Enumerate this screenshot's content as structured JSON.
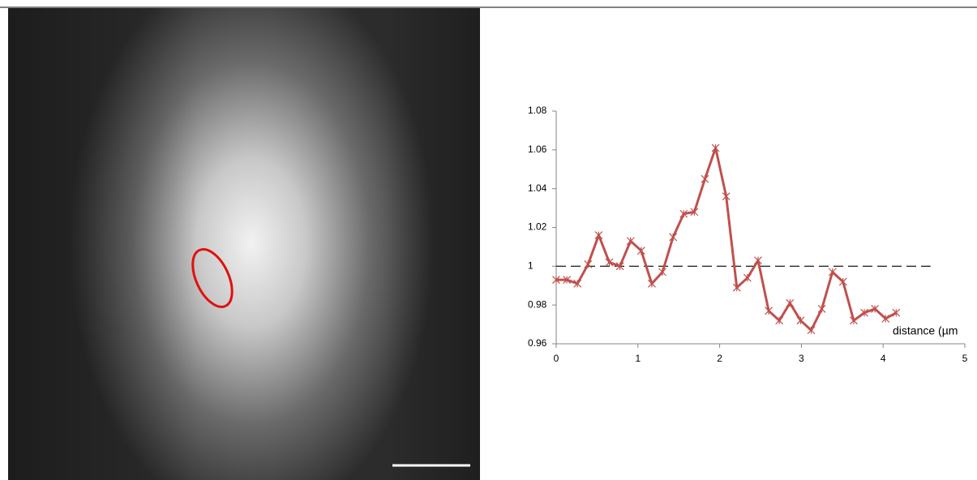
{
  "chart_data": {
    "type": "line",
    "x_label": "distance (µm",
    "x": [
      0,
      0.13,
      0.26,
      0.39,
      0.52,
      0.65,
      0.78,
      0.91,
      1.04,
      1.17,
      1.3,
      1.43,
      1.56,
      1.69,
      1.82,
      1.95,
      2.08,
      2.21,
      2.34,
      2.47,
      2.6,
      2.73,
      2.86,
      2.99,
      3.12,
      3.25,
      3.38,
      3.51,
      3.64,
      3.77,
      3.9,
      4.03,
      4.16
    ],
    "series": [
      {
        "color": "#c0504d",
        "values": [
          0.993,
          0.993,
          0.991,
          1.001,
          1.016,
          1.002,
          1.0,
          1.013,
          1.008,
          0.991,
          0.997,
          1.015,
          1.027,
          1.028,
          1.045,
          1.061,
          1.036,
          0.989,
          0.994,
          1.003,
          0.977,
          0.972,
          0.981,
          0.972,
          0.967,
          0.978,
          0.997,
          0.992,
          0.972,
          0.976,
          0.978,
          0.973,
          0.976
        ]
      }
    ],
    "reference_line": 1,
    "reference_xlim": [
      0,
      4.58
    ],
    "xlim": [
      0,
      5
    ],
    "xticks": [
      0,
      1,
      2,
      3,
      4,
      5
    ],
    "ylim": [
      0.96,
      1.08
    ],
    "yticks": [
      0.96,
      0.98,
      1,
      1.02,
      1.04,
      1.06,
      1.08
    ]
  }
}
